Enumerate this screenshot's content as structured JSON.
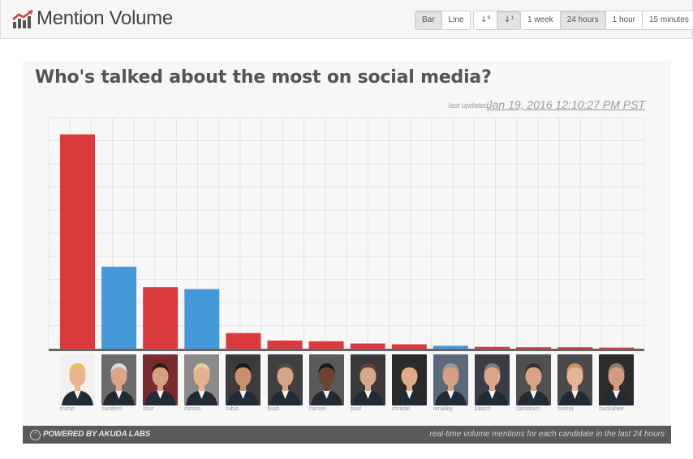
{
  "header": {
    "title": "Mention Volume",
    "chart_type_buttons": [
      {
        "label": "Bar",
        "active": true
      },
      {
        "label": "Line",
        "active": false
      }
    ],
    "sort_buttons": [
      {
        "icon": "sort-ascending-icon",
        "glyph": "↓⁹"
      },
      {
        "icon": "sort-descending-icon",
        "glyph": "↓¹"
      }
    ],
    "range_buttons": [
      {
        "label": "1 week",
        "active": false
      },
      {
        "label": "24 hours",
        "active": true
      },
      {
        "label": "1 hour",
        "active": false
      },
      {
        "label": "15 minutes",
        "active": false
      }
    ]
  },
  "panel": {
    "headline": "Who's talked about the most on social media?",
    "last_updated_label": "last updated:",
    "last_updated_value": "Jan 19, 2016 12:10:27 PM PST"
  },
  "colors": {
    "republican": "#db3a3c",
    "democrat": "#4499d8",
    "grid": "#e4e4e4",
    "baseline": "#666666"
  },
  "chart_data": {
    "type": "bar",
    "title": "Who's talked about the most on social media?",
    "categories": [
      "trump",
      "sanders",
      "cruz",
      "clinton",
      "rubio",
      "bush",
      "carson",
      "paul",
      "christie",
      "omalley",
      "kasich",
      "santorum",
      "fiorina",
      "huckabee"
    ],
    "values": [
      575,
      220,
      165,
      160,
      42,
      22,
      20,
      14,
      12,
      8,
      5,
      4,
      4,
      3
    ],
    "party": [
      "R",
      "D",
      "R",
      "D",
      "R",
      "R",
      "R",
      "R",
      "R",
      "D",
      "R",
      "R",
      "R",
      "R"
    ],
    "ylim": [
      0,
      620
    ],
    "grid": true,
    "legend": "none",
    "data_labels_legible": false
  },
  "footer": {
    "powered_by": "POWERED BY AKUDA LABS",
    "note": "real-time volume mentions for each candidate in the last 24 hours"
  }
}
